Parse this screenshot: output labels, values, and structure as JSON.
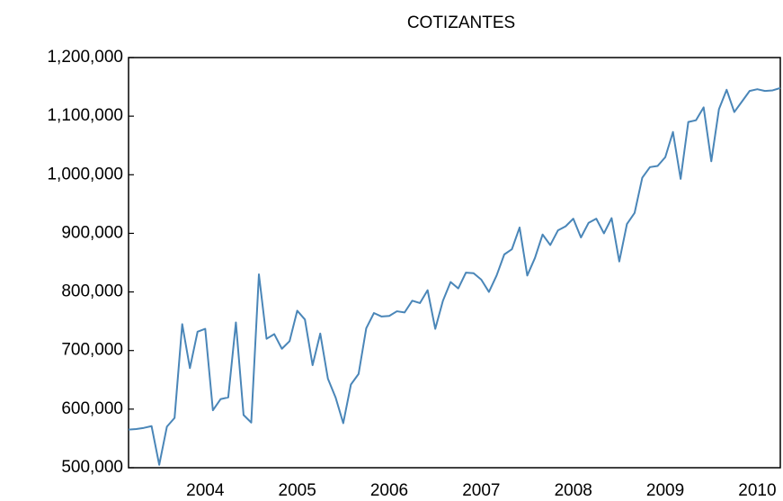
{
  "chart_data": {
    "type": "line",
    "title": "COTIZANTES",
    "categories": [
      null,
      null,
      null,
      null,
      null,
      null,
      null,
      null,
      null,
      null,
      "2004",
      null,
      null,
      null,
      null,
      null,
      null,
      null,
      null,
      null,
      null,
      null,
      "2005",
      null,
      null,
      null,
      null,
      null,
      null,
      null,
      null,
      null,
      null,
      null,
      "2006",
      null,
      null,
      null,
      null,
      null,
      null,
      null,
      null,
      null,
      null,
      null,
      "2007",
      null,
      null,
      null,
      null,
      null,
      null,
      null,
      null,
      null,
      null,
      null,
      "2008",
      null,
      null,
      null,
      null,
      null,
      null,
      null,
      null,
      null,
      null,
      null,
      "2009",
      null,
      null,
      null,
      null,
      null,
      null,
      null,
      null,
      null,
      null,
      null,
      "2010",
      null,
      null,
      null
    ],
    "series": [
      {
        "name": "COTIZANTES",
        "color": "#4a86b8",
        "values": [
          565000,
          566000,
          568000,
          571000,
          505000,
          570000,
          585000,
          745000,
          670000,
          732000,
          737000,
          598000,
          617000,
          620000,
          748000,
          590000,
          577000,
          830000,
          720000,
          728000,
          703000,
          716000,
          768000,
          753000,
          675000,
          729000,
          652000,
          620000,
          576000,
          642000,
          660000,
          738000,
          764000,
          758000,
          759000,
          767000,
          765000,
          785000,
          781000,
          803000,
          737000,
          785000,
          817000,
          806000,
          833000,
          832000,
          821000,
          800000,
          828000,
          864000,
          873000,
          910000,
          828000,
          858000,
          898000,
          880000,
          905000,
          912000,
          925000,
          893000,
          918000,
          925000,
          900000,
          926000,
          852000,
          916000,
          935000,
          995000,
          1013000,
          1015000,
          1030000,
          1073000,
          993000,
          1090000,
          1093000,
          1115000,
          1023000,
          1112000,
          1145000,
          1107000,
          1125000,
          1143000,
          1146000,
          1143000,
          1144000,
          1148000
        ]
      }
    ],
    "ylim": [
      500000,
      1200000
    ],
    "yticks": [
      {
        "value": 500000,
        "label": "500,000"
      },
      {
        "value": 600000,
        "label": "600,000"
      },
      {
        "value": 700000,
        "label": "700,000"
      },
      {
        "value": 800000,
        "label": "800,000"
      },
      {
        "value": 900000,
        "label": "900,000"
      },
      {
        "value": 1000000,
        "label": "1,000,000"
      },
      {
        "value": 1100000,
        "label": "1,100,000"
      },
      {
        "value": 1200000,
        "label": "1,200,000"
      }
    ],
    "grid": false
  }
}
